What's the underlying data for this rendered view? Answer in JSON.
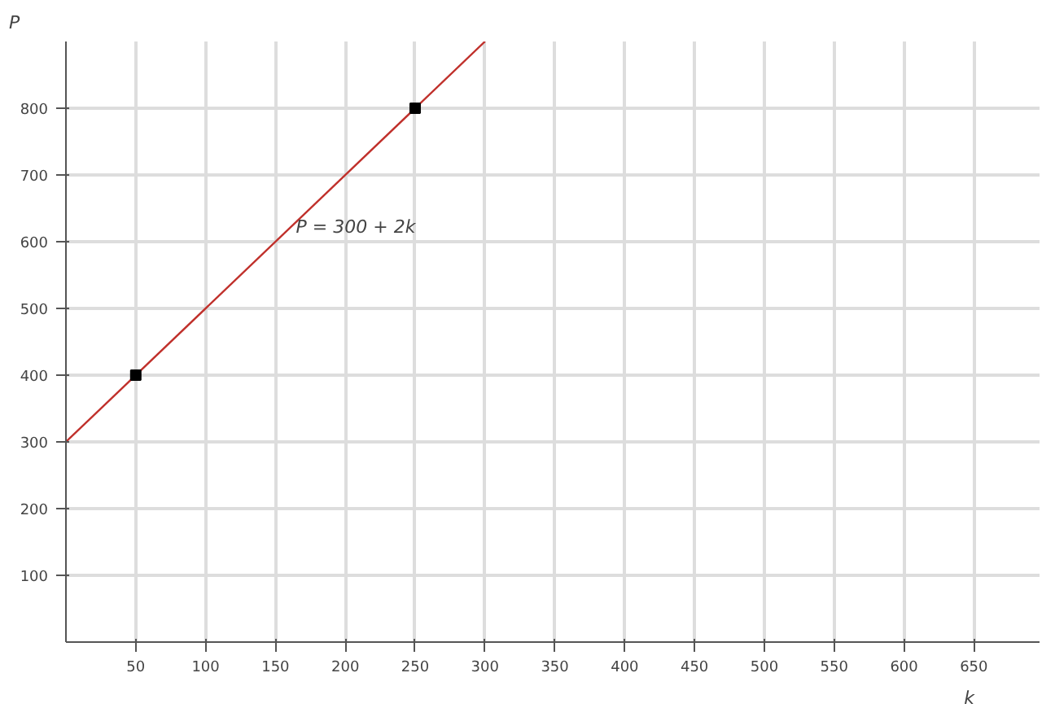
{
  "chart_data": {
    "type": "line",
    "xlabel": "k",
    "ylabel": "P",
    "series": [
      {
        "color": "#c0302b",
        "x": [
          0,
          300
        ],
        "values": [
          300,
          900
        ],
        "marker": "none"
      },
      {
        "type": "scatter",
        "color": "#000000",
        "x": [
          50,
          250
        ],
        "values": [
          400,
          800
        ],
        "marker": "square"
      }
    ],
    "annotations": [
      "P = 300 + 2k"
    ],
    "xlim": [
      0,
      697
    ],
    "xticks": [
      50,
      100,
      150,
      200,
      250,
      300,
      350,
      400,
      450,
      500,
      550,
      600,
      650
    ],
    "ylim": [
      0,
      900
    ],
    "yticks": [
      100,
      200,
      300,
      400,
      500,
      600,
      700,
      800
    ],
    "grid": true
  }
}
